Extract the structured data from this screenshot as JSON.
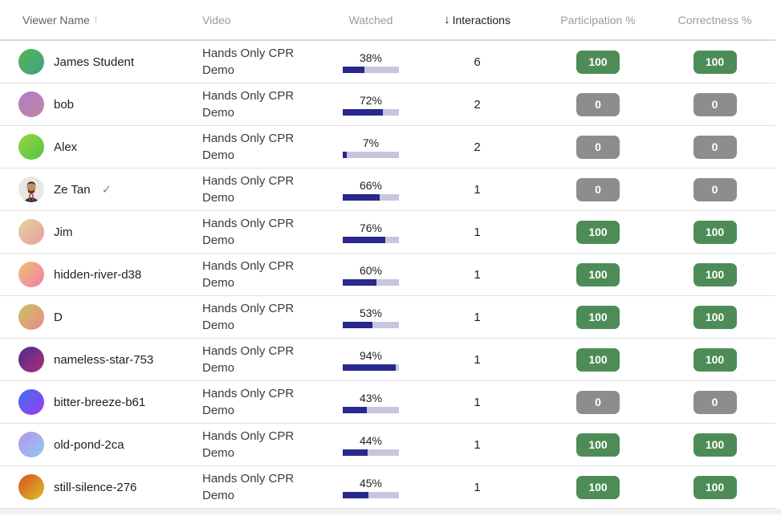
{
  "header": {
    "viewer_name": "Viewer Name",
    "video": "Video",
    "watched": "Watched",
    "interactions": "Interactions",
    "participation": "Participation %",
    "correctness": "Correctness %",
    "asc_arrow": "↑",
    "desc_arrow": "↓",
    "sorted_by": "Interactions",
    "sort_direction": "descending"
  },
  "colors": {
    "badge_green": "#4d8c57",
    "badge_gray": "#8d8d8d",
    "bar_fill": "#28288d",
    "bar_track": "#c7c6de"
  },
  "verified_check": "✓",
  "rows": [
    {
      "viewer": "James Student",
      "verified": false,
      "video": "Hands Only CPR Demo",
      "watched_label": "38%",
      "watched_pct": 38,
      "interactions": "6",
      "participation": "100",
      "correctness": "100",
      "avatar": {
        "type": "gradient",
        "from": "#55b64f",
        "to": "#3ea186"
      }
    },
    {
      "viewer": "bob",
      "verified": false,
      "video": "Hands Only CPR Demo",
      "watched_label": "72%",
      "watched_pct": 72,
      "interactions": "2",
      "participation": "0",
      "correctness": "0",
      "avatar": {
        "type": "gradient",
        "from": "#a97fc9",
        "to": "#c584a1"
      }
    },
    {
      "viewer": "Alex",
      "verified": false,
      "video": "Hands Only CPR Demo",
      "watched_label": "7%",
      "watched_pct": 7,
      "interactions": "2",
      "participation": "0",
      "correctness": "0",
      "avatar": {
        "type": "gradient",
        "from": "#9bd53e",
        "to": "#52c544"
      }
    },
    {
      "viewer": "Ze Tan",
      "verified": true,
      "video": "Hands Only CPR Demo",
      "watched_label": "66%",
      "watched_pct": 66,
      "interactions": "1",
      "participation": "0",
      "correctness": "0",
      "avatar": {
        "type": "photo"
      }
    },
    {
      "viewer": "Jim",
      "verified": false,
      "video": "Hands Only CPR Demo",
      "watched_label": "76%",
      "watched_pct": 76,
      "interactions": "1",
      "participation": "100",
      "correctness": "100",
      "avatar": {
        "type": "gradient",
        "from": "#e3d79a",
        "to": "#e79aa2"
      }
    },
    {
      "viewer": "hidden-river-d38",
      "verified": false,
      "video": "Hands Only CPR Demo",
      "watched_label": "60%",
      "watched_pct": 60,
      "interactions": "1",
      "participation": "100",
      "correctness": "100",
      "avatar": {
        "type": "gradient",
        "from": "#ecc173",
        "to": "#ef7fa4"
      }
    },
    {
      "viewer": "D",
      "verified": false,
      "video": "Hands Only CPR Demo",
      "watched_label": "53%",
      "watched_pct": 53,
      "interactions": "1",
      "participation": "100",
      "correctness": "100",
      "avatar": {
        "type": "gradient",
        "from": "#c9c35e",
        "to": "#ea8a8a"
      }
    },
    {
      "viewer": "nameless-star-753",
      "verified": false,
      "video": "Hands Only CPR Demo",
      "watched_label": "94%",
      "watched_pct": 94,
      "interactions": "1",
      "participation": "100",
      "correctness": "100",
      "avatar": {
        "type": "gradient",
        "from": "#4b2d8e",
        "to": "#ad2f78"
      }
    },
    {
      "viewer": "bitter-breeze-b61",
      "verified": false,
      "video": "Hands Only CPR Demo",
      "watched_label": "43%",
      "watched_pct": 43,
      "interactions": "1",
      "participation": "0",
      "correctness": "0",
      "avatar": {
        "type": "gradient",
        "from": "#3f6ef2",
        "to": "#9b3cf2"
      }
    },
    {
      "viewer": "old-pond-2ca",
      "verified": false,
      "video": "Hands Only CPR Demo",
      "watched_label": "44%",
      "watched_pct": 44,
      "interactions": "1",
      "participation": "100",
      "correctness": "100",
      "avatar": {
        "type": "gradient",
        "from": "#b693ea",
        "to": "#8fcaf2"
      }
    },
    {
      "viewer": "still-silence-276",
      "verified": false,
      "video": "Hands Only CPR Demo",
      "watched_label": "45%",
      "watched_pct": 45,
      "interactions": "1",
      "participation": "100",
      "correctness": "100",
      "avatar": {
        "type": "gradient",
        "from": "#dd4f17",
        "to": "#d6c133"
      }
    }
  ]
}
